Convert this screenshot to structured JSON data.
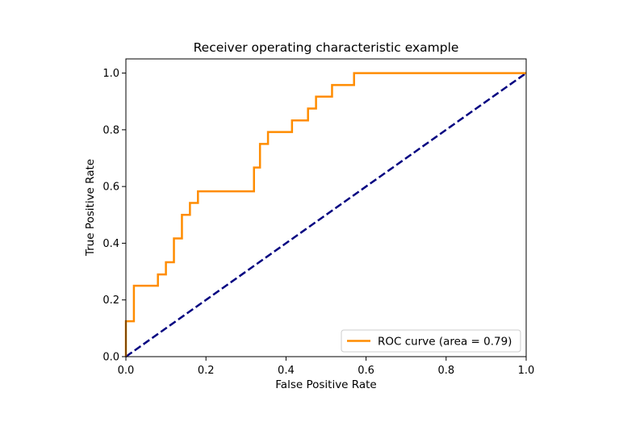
{
  "chart_data": {
    "type": "line",
    "title": "Receiver operating characteristic example",
    "xlabel": "False Positive Rate",
    "ylabel": "True Positive Rate",
    "xlim": [
      0.0,
      1.0
    ],
    "ylim": [
      0.0,
      1.05
    ],
    "xticks": [
      0.0,
      0.2,
      0.4,
      0.6,
      0.8,
      1.0
    ],
    "yticks": [
      0.0,
      0.2,
      0.4,
      0.6,
      0.8,
      1.0
    ],
    "xtick_labels": [
      "0.0",
      "0.2",
      "0.4",
      "0.6",
      "0.8",
      "1.0"
    ],
    "ytick_labels": [
      "0.0",
      "0.2",
      "0.4",
      "0.6",
      "0.8",
      "1.0"
    ],
    "grid": false,
    "legend_position": "lower-right",
    "series": [
      {
        "name": "ROC curve (area = 0.79)",
        "color": "#ff8c00",
        "style": "solid",
        "x": [
          0.0,
          0.0,
          0.02,
          0.02,
          0.08,
          0.08,
          0.1,
          0.1,
          0.12,
          0.12,
          0.14,
          0.14,
          0.16,
          0.16,
          0.18,
          0.18,
          0.32,
          0.32,
          0.335,
          0.335,
          0.355,
          0.355,
          0.415,
          0.415,
          0.455,
          0.455,
          0.475,
          0.475,
          0.515,
          0.515,
          0.57,
          0.57,
          1.0
        ],
        "y": [
          0.0,
          0.125,
          0.125,
          0.25,
          0.25,
          0.29,
          0.29,
          0.333,
          0.333,
          0.417,
          0.417,
          0.5,
          0.5,
          0.542,
          0.542,
          0.583,
          0.583,
          0.667,
          0.667,
          0.75,
          0.75,
          0.792,
          0.792,
          0.833,
          0.833,
          0.875,
          0.875,
          0.917,
          0.917,
          0.958,
          0.958,
          1.0,
          1.0
        ]
      },
      {
        "name": "",
        "color": "#000080",
        "style": "dashed",
        "x": [
          0.0,
          1.0
        ],
        "y": [
          0.0,
          1.0
        ]
      }
    ]
  }
}
